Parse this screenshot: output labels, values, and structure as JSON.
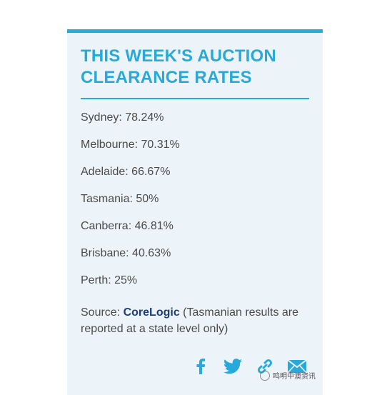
{
  "card": {
    "title_line1": "THIS WEEK'S AUCTION",
    "title_line2": "CLEARANCE RATES",
    "rates": [
      "Sydney:  78.24%",
      "Melbourne: 70.31%",
      "Adelaide: 66.67%",
      "Tasmania: 50%",
      "Canberra: 46.81%",
      "Brisbane: 40.63%",
      "Perth: 25%"
    ],
    "source_prefix": "Source: ",
    "source_link": "CoreLogic",
    "source_note": " (Tasmanian results are reported at a state level only)"
  },
  "share": {
    "icons": [
      "facebook-icon",
      "twitter-icon",
      "link-icon",
      "email-icon"
    ]
  },
  "watermark": {
    "text": "鸣明中澳资讯"
  },
  "colors": {
    "accent": "#29a9d9",
    "card_bg": "#edf4f9",
    "text": "#4a4a4a",
    "link": "#1d3d7a"
  }
}
